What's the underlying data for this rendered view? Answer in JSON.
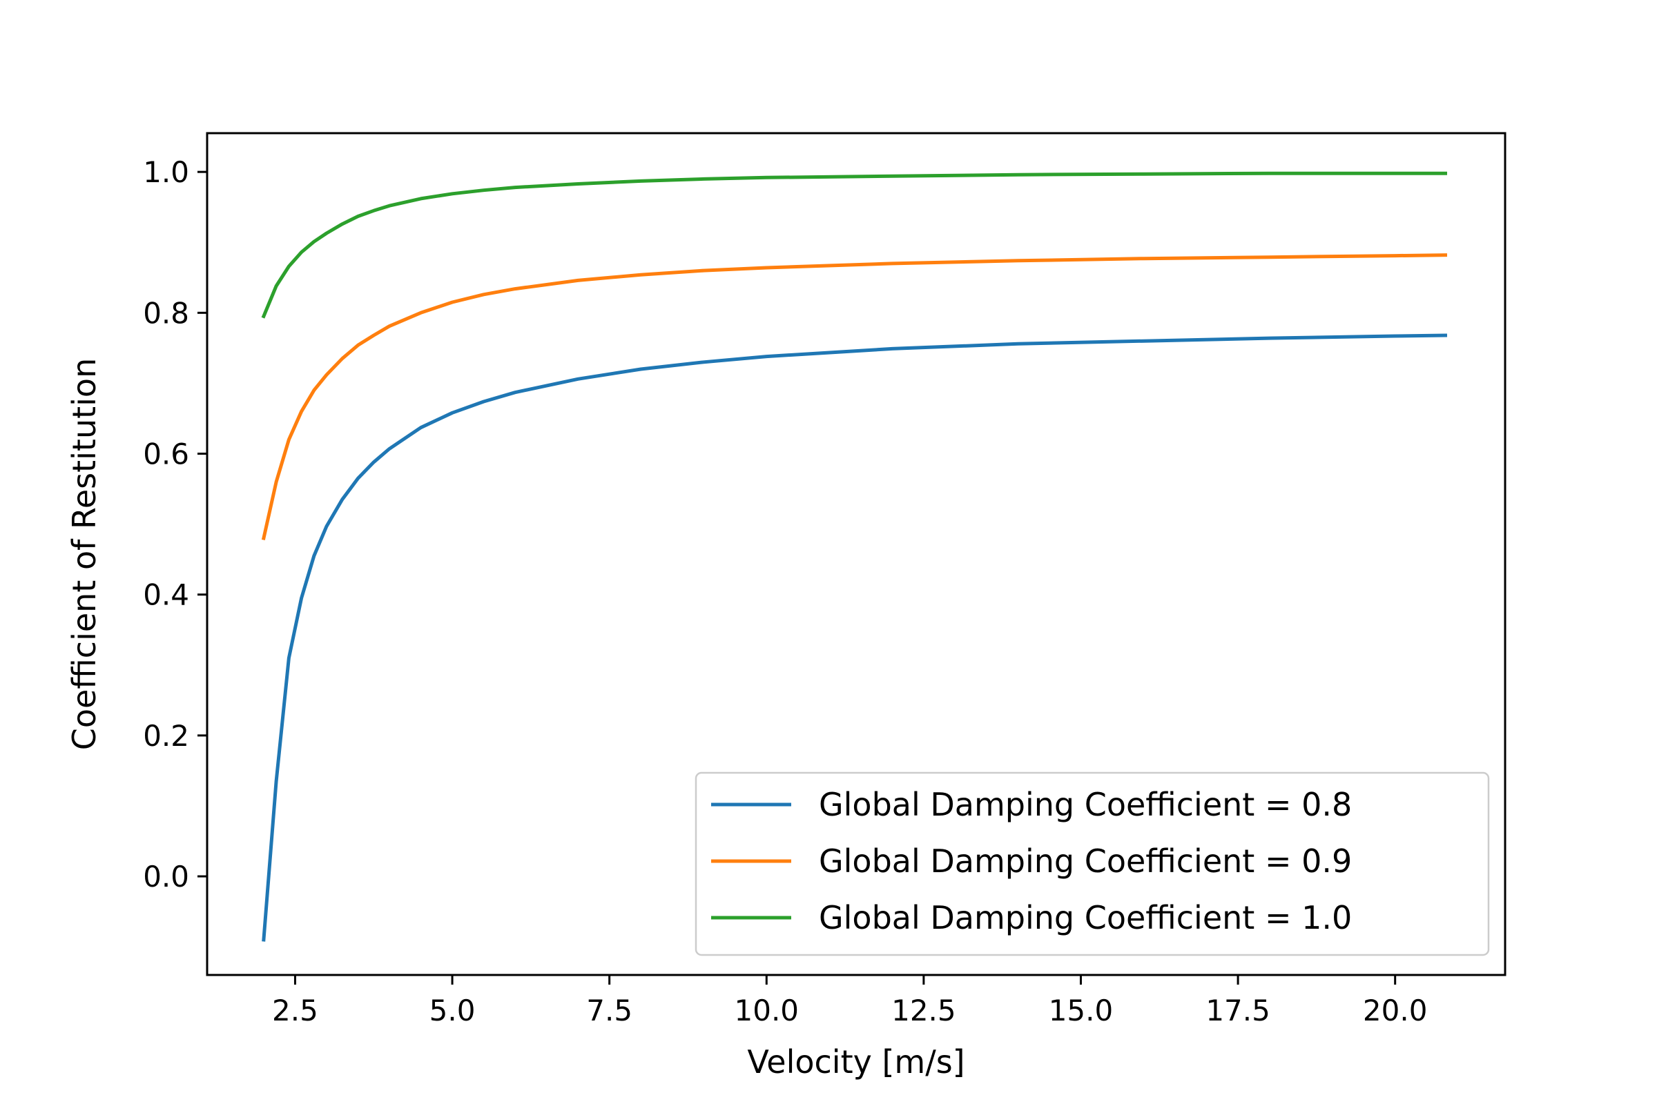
{
  "chart_data": {
    "type": "line",
    "title": "",
    "xlabel": "Velocity [m/s]",
    "ylabel": "Coefficient of Restitution",
    "xlim": [
      1.1,
      21.75
    ],
    "ylim": [
      -0.14,
      1.055
    ],
    "xticks": [
      2.5,
      5.0,
      7.5,
      10.0,
      12.5,
      15.0,
      17.5,
      20.0
    ],
    "xtick_labels": [
      "2.5",
      "5.0",
      "7.5",
      "10.0",
      "12.5",
      "15.0",
      "17.5",
      "20.0"
    ],
    "yticks": [
      0.0,
      0.2,
      0.4,
      0.6,
      0.8,
      1.0
    ],
    "ytick_labels": [
      "0.0",
      "0.2",
      "0.4",
      "0.6",
      "0.8",
      "1.0"
    ],
    "grid": false,
    "legend_position": "lower-right",
    "x": [
      2.0,
      2.2,
      2.4,
      2.6,
      2.8,
      3.0,
      3.25,
      3.5,
      3.75,
      4.0,
      4.5,
      5.0,
      5.5,
      6.0,
      7.0,
      8.0,
      9.0,
      10.0,
      12.0,
      14.0,
      16.0,
      18.0,
      20.0,
      20.8
    ],
    "series": [
      {
        "name": "Global Damping Coefficient = 0.8",
        "color": "#1f77b4",
        "values": [
          -0.09,
          0.135,
          0.31,
          0.395,
          0.455,
          0.497,
          0.535,
          0.565,
          0.588,
          0.607,
          0.637,
          0.658,
          0.674,
          0.687,
          0.706,
          0.72,
          0.73,
          0.738,
          0.749,
          0.756,
          0.76,
          0.764,
          0.767,
          0.768
        ]
      },
      {
        "name": "Global Damping Coefficient = 0.9",
        "color": "#ff7f0e",
        "values": [
          0.48,
          0.56,
          0.62,
          0.66,
          0.69,
          0.712,
          0.735,
          0.754,
          0.768,
          0.781,
          0.8,
          0.815,
          0.826,
          0.834,
          0.846,
          0.854,
          0.86,
          0.864,
          0.87,
          0.874,
          0.877,
          0.879,
          0.881,
          0.882
        ]
      },
      {
        "name": "Global Damping Coefficient = 1.0",
        "color": "#2ca02c",
        "values": [
          0.795,
          0.838,
          0.866,
          0.886,
          0.901,
          0.913,
          0.926,
          0.937,
          0.945,
          0.952,
          0.962,
          0.969,
          0.974,
          0.978,
          0.983,
          0.987,
          0.99,
          0.992,
          0.994,
          0.996,
          0.997,
          0.998,
          0.998,
          0.998
        ]
      }
    ]
  }
}
